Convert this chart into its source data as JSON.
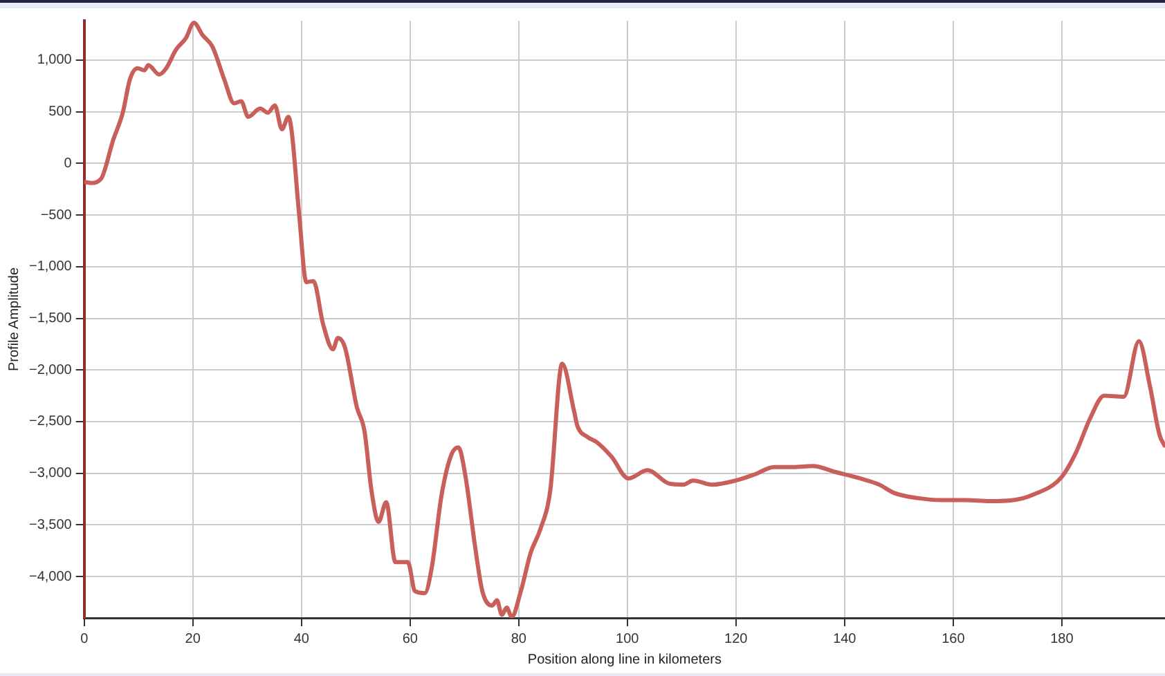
{
  "chart_data": {
    "type": "line",
    "xlabel": "Position along line in kilometers",
    "ylabel": "Profile Amplitude",
    "xlim": [
      0,
      199
    ],
    "xticks": [
      0,
      20,
      40,
      60,
      80,
      100,
      120,
      140,
      160,
      180
    ],
    "ylim": [
      -4400,
      1380
    ],
    "yticks": [
      {
        "value": -4000,
        "label": "−4,000"
      },
      {
        "value": -3500,
        "label": "−3,500"
      },
      {
        "value": -3000,
        "label": "−3,000"
      },
      {
        "value": -2500,
        "label": "−2,500"
      },
      {
        "value": -2000,
        "label": "−2,000"
      },
      {
        "value": -1500,
        "label": "−1,500"
      },
      {
        "value": -1000,
        "label": "−1,000"
      },
      {
        "value": -500,
        "label": "−500"
      },
      0,
      500,
      {
        "value": 1000,
        "label": "1,000"
      }
    ],
    "grid": true,
    "marker": "none",
    "line_style": "solid",
    "series": [
      {
        "color": "#c95f5b",
        "x": [
          0,
          1.3,
          3.1,
          5.3,
          7.1,
          8.4,
          9.8,
          11.1,
          11.8,
          13.8,
          15.1,
          16.9,
          18.7,
          20.2,
          21.8,
          23.6,
          25.8,
          27.6,
          28.9,
          30.2,
          32.4,
          33.8,
          35.1,
          36.4,
          37.6,
          38.2,
          39.6,
          40.9,
          42.2,
          44,
          45.8,
          46.7,
          48,
          50.2,
          51.6,
          52.9,
          54.2,
          55.6,
          57.3,
          59.6,
          60.9,
          62.7,
          64,
          65.8,
          67.6,
          68.9,
          70.2,
          72,
          73.3,
          75.1,
          76,
          76.9,
          77.8,
          78.7,
          80.4,
          82.2,
          84,
          85.8,
          88,
          90.2,
          90.8,
          92.7,
          94.4,
          97.1,
          100.2,
          103.7,
          107.7,
          110.3,
          112.1,
          115.6,
          120,
          123.5,
          127,
          130.6,
          134.1,
          138.5,
          142.9,
          146.4,
          149.1,
          153.5,
          157.9,
          162.3,
          166.7,
          171.1,
          174.6,
          179.9,
          182.6,
          185.2,
          187.8,
          191.4,
          194.2,
          196.2,
          198,
          198.9
        ],
        "values": [
          -180,
          -190,
          -150,
          220,
          490,
          810,
          920,
          900,
          950,
          860,
          920,
          1100,
          1210,
          1360,
          1240,
          1130,
          810,
          580,
          600,
          450,
          530,
          490,
          560,
          330,
          450,
          310,
          -510,
          -1150,
          -1140,
          -1560,
          -1800,
          -1690,
          -1780,
          -2360,
          -2590,
          -3170,
          -3470,
          -3280,
          -3860,
          -3860,
          -4140,
          -4160,
          -3910,
          -3210,
          -2820,
          -2750,
          -3030,
          -3720,
          -4140,
          -4280,
          -4230,
          -4370,
          -4300,
          -4390,
          -4140,
          -3770,
          -3540,
          -3170,
          -1940,
          -2400,
          -2540,
          -2650,
          -2700,
          -2840,
          -3050,
          -2970,
          -3100,
          -3110,
          -3070,
          -3110,
          -3070,
          -3010,
          -2940,
          -2940,
          -2930,
          -2990,
          -3050,
          -3110,
          -3190,
          -3240,
          -3260,
          -3260,
          -3270,
          -3260,
          -3210,
          -3040,
          -2800,
          -2470,
          -2250,
          -2260,
          -1720,
          -2150,
          -2630,
          -2730
        ]
      }
    ]
  }
}
